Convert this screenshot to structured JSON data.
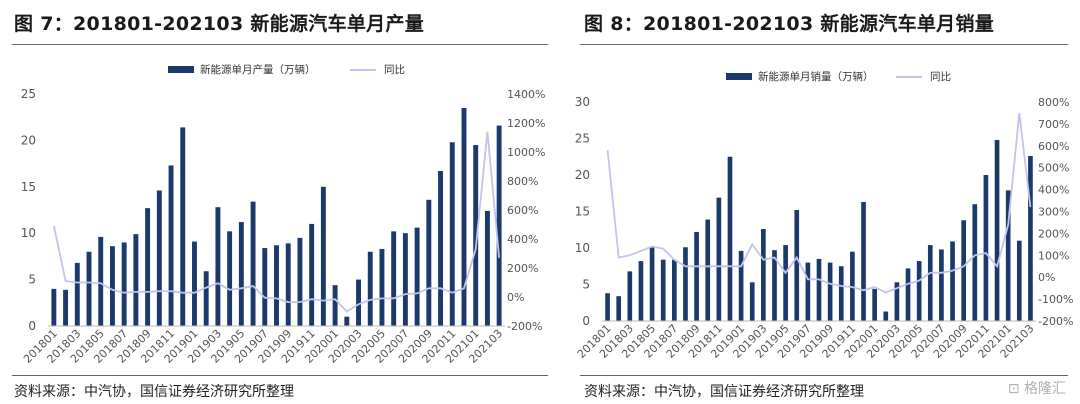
{
  "chart_data": [
    {
      "type": "bar",
      "title": "图 7：201801-202103 新能源汽车单月产量",
      "source": "资料来源：中汽协，国信证券经济研究所整理",
      "legend": {
        "bar_label": "新能源单月产量（万辆）",
        "line_label": "同比",
        "placement": "top"
      },
      "colors": {
        "bar": "#1b3a6b",
        "line": "#c3c3ee"
      },
      "x_tick_labels": [
        "201801",
        "201803",
        "201805",
        "201807",
        "201809",
        "201811",
        "201901",
        "201903",
        "201905",
        "201907",
        "201909",
        "201911",
        "202001",
        "202003",
        "202005",
        "202007",
        "202009",
        "202011",
        "202101",
        "202103"
      ],
      "y_left": {
        "min": 0,
        "max": 25,
        "ticks": [
          "0",
          "5",
          "10",
          "15",
          "20",
          "25"
        ]
      },
      "y_right": {
        "min": -200,
        "max": 1400,
        "ticks": [
          "-200%",
          "0%",
          "200%",
          "400%",
          "600%",
          "800%",
          "1000%",
          "1200%",
          "1400%"
        ]
      },
      "categories": [
        "201801",
        "201802",
        "201803",
        "201804",
        "201805",
        "201806",
        "201807",
        "201808",
        "201809",
        "201810",
        "201811",
        "201812",
        "201901",
        "201902",
        "201903",
        "201904",
        "201905",
        "201906",
        "201907",
        "201908",
        "201909",
        "201910",
        "201911",
        "201912",
        "202001",
        "202002",
        "202003",
        "202004",
        "202005",
        "202006",
        "202007",
        "202008",
        "202009",
        "202010",
        "202011",
        "202012",
        "202101",
        "202102",
        "202103"
      ],
      "series": [
        {
          "name": "新能源单月产量（万辆）",
          "axis": "left",
          "values": [
            4.0,
            3.9,
            6.8,
            8.0,
            9.6,
            8.6,
            9.0,
            9.9,
            12.7,
            14.6,
            17.3,
            21.4,
            9.1,
            5.9,
            12.8,
            10.2,
            11.2,
            13.4,
            8.4,
            8.7,
            8.9,
            9.5,
            11.0,
            15.0,
            4.4,
            1.0,
            5.0,
            8.0,
            8.3,
            10.2,
            10.0,
            10.6,
            13.6,
            16.7,
            19.8,
            23.5,
            19.5,
            12.4,
            21.6
          ]
        },
        {
          "name": "同比",
          "axis": "right",
          "values": [
            490,
            110,
            100,
            100,
            95,
            50,
            30,
            35,
            35,
            40,
            40,
            30,
            30,
            65,
            95,
            50,
            60,
            75,
            -5,
            -10,
            -35,
            -35,
            -15,
            -25,
            -15,
            -100,
            -50,
            -20,
            -10,
            -10,
            20,
            25,
            60,
            60,
            30,
            60,
            330,
            1140,
            270
          ]
        }
      ]
    },
    {
      "type": "bar",
      "title": "图 8：201801-202103 新能源汽车单月销量",
      "source": "资料来源：中汽协，国信证券经济研究所整理",
      "legend": {
        "bar_label": "新能源单月销量（万辆）",
        "line_label": "同比",
        "placement": "top"
      },
      "colors": {
        "bar": "#1b3a6b",
        "line": "#c3c3ee"
      },
      "x_tick_labels": [
        "201801",
        "201803",
        "201805",
        "201807",
        "201809",
        "201811",
        "201901",
        "201903",
        "201905",
        "201907",
        "201909",
        "201911",
        "202001",
        "202003",
        "202005",
        "202007",
        "202009",
        "202011",
        "202101",
        "202103"
      ],
      "y_left": {
        "min": 0,
        "max": 30,
        "ticks": [
          "0",
          "5",
          "10",
          "15",
          "20",
          "25",
          "30"
        ]
      },
      "y_right": {
        "min": -200,
        "max": 800,
        "ticks": [
          "-200%",
          "-100%",
          "0%",
          "100%",
          "200%",
          "300%",
          "400%",
          "500%",
          "600%",
          "700%",
          "800%"
        ]
      },
      "categories": [
        "201801",
        "201802",
        "201803",
        "201804",
        "201805",
        "201806",
        "201807",
        "201808",
        "201809",
        "201810",
        "201811",
        "201812",
        "201901",
        "201902",
        "201903",
        "201904",
        "201905",
        "201906",
        "201907",
        "201908",
        "201909",
        "201910",
        "201911",
        "201912",
        "202001",
        "202002",
        "202003",
        "202004",
        "202005",
        "202006",
        "202007",
        "202008",
        "202009",
        "202010",
        "202011",
        "202012",
        "202101",
        "202102",
        "202103"
      ],
      "series": [
        {
          "name": "新能源单月销量（万辆）",
          "axis": "left",
          "values": [
            3.8,
            3.4,
            6.8,
            8.2,
            10.2,
            8.4,
            8.4,
            10.1,
            12.2,
            13.9,
            16.9,
            22.5,
            9.6,
            5.3,
            12.6,
            9.7,
            10.4,
            15.2,
            8.0,
            8.5,
            8.0,
            7.5,
            9.5,
            16.3,
            4.4,
            1.3,
            5.3,
            7.2,
            8.2,
            10.4,
            9.8,
            10.9,
            13.8,
            16.0,
            20.0,
            24.8,
            17.9,
            11.0,
            22.6
          ]
        },
        {
          "name": "同比",
          "axis": "right",
          "values": [
            580,
            90,
            100,
            120,
            140,
            130,
            80,
            50,
            50,
            50,
            50,
            50,
            50,
            150,
            80,
            90,
            20,
            90,
            -10,
            -10,
            -30,
            -40,
            -45,
            -60,
            -45,
            -70,
            -50,
            -30,
            -15,
            20,
            20,
            30,
            50,
            100,
            110,
            50,
            240,
            750,
            320
          ]
        }
      ]
    }
  ],
  "watermark": "格隆汇"
}
